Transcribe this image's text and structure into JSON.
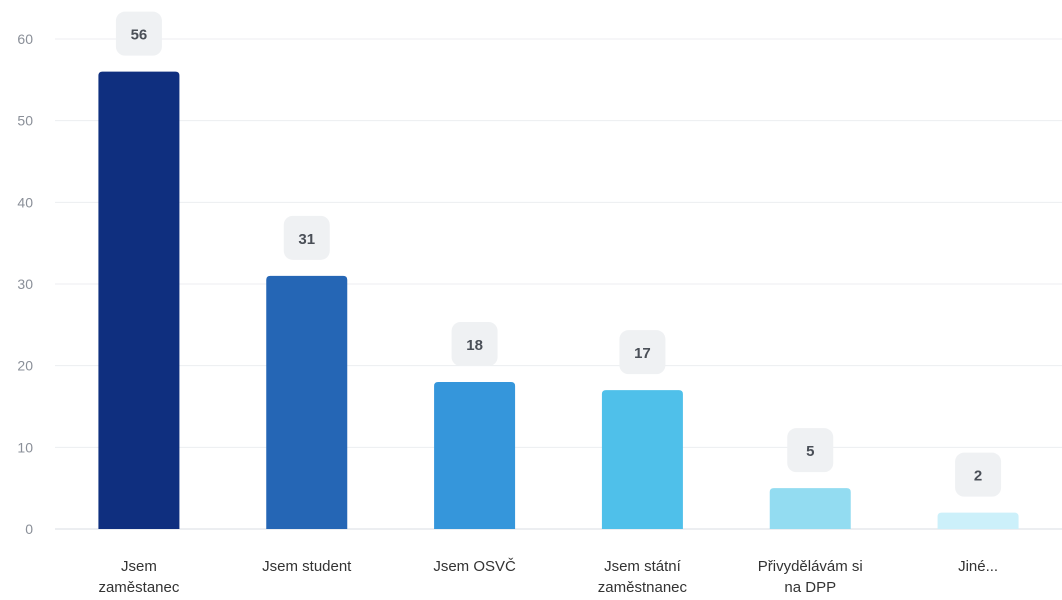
{
  "chart_data": {
    "type": "bar",
    "title": "",
    "xlabel": "",
    "ylabel": "",
    "ylim": [
      0,
      60
    ],
    "yticks": [
      0,
      10,
      20,
      30,
      40,
      50,
      60
    ],
    "grid": true,
    "legend": "none",
    "categories": [
      [
        "Jsem",
        "zaměstanec"
      ],
      [
        "Jsem student"
      ],
      [
        "Jsem OSVČ"
      ],
      [
        "Jsem státní",
        "zaměstnanec"
      ],
      [
        "Přivydělávám si",
        "na DPP"
      ],
      [
        "Jiné..."
      ]
    ],
    "values": [
      56,
      31,
      18,
      17,
      5,
      2
    ],
    "colors": [
      "#0f2f7f",
      "#2566b5",
      "#3596db",
      "#4fc0ea",
      "#93dcf1",
      "#ccf0fa"
    ],
    "label_bg": "#eff1f3"
  }
}
